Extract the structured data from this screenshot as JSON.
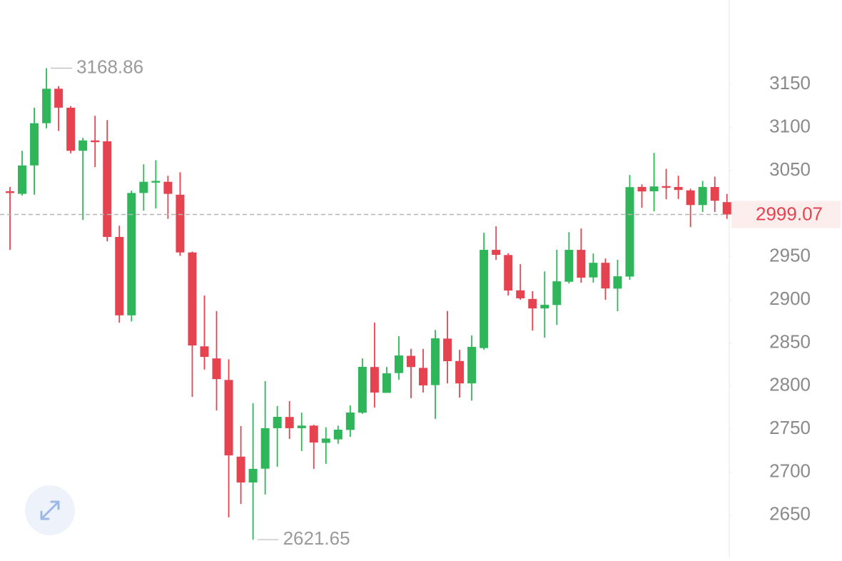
{
  "chart_data": {
    "type": "candlestick",
    "series": [
      {
        "up_color": "#2fb55a",
        "down_color": "#e5434f",
        "open": [
          3026,
          3023,
          3056,
          3105,
          3145,
          3123,
          3073,
          3085,
          3084,
          2973,
          2882,
          3024,
          3036,
          3037,
          3022,
          2955,
          2846,
          2832,
          2807,
          2718,
          2688,
          2704,
          2751,
          2764,
          2751,
          2754,
          2734,
          2738,
          2749,
          2769,
          2822,
          2792,
          2815,
          2835,
          2821,
          2801,
          2855,
          2829,
          2803,
          2844,
          2958,
          2952,
          2911,
          2901,
          2890,
          2894,
          2921,
          2958,
          2926,
          2943,
          2913,
          2927,
          3031,
          3026,
          3032,
          3031,
          3027,
          3010,
          3031,
          3013.4
        ],
        "high": [
          3031,
          3073,
          3123,
          3168.86,
          3148,
          3125,
          3088,
          3113.6,
          3108.6,
          2986,
          3026.7,
          3057.3,
          3062,
          3044,
          3048,
          2956,
          2905,
          2887,
          2831,
          2753.5,
          2780,
          2805.6,
          2776.7,
          2782.5,
          2769,
          2755,
          2752,
          2754,
          2777.5,
          2832,
          2873.5,
          2822,
          2857.8,
          2843,
          2843,
          2865,
          2887,
          2842,
          2858.6,
          2977.8,
          2985.3,
          2954,
          2941.4,
          2910,
          2933,
          2958,
          2978.6,
          2982.8,
          2953.8,
          2948,
          2946.4,
          3044.9,
          3034,
          3070.5,
          3052,
          3044,
          3029,
          3038,
          3043,
          3023
        ],
        "low": [
          2958,
          3021,
          3022,
          3099,
          3096,
          3070,
          2992.7,
          3054,
          2968,
          2873.5,
          2875,
          3003.5,
          3006,
          2994,
          2951,
          2787.4,
          2819,
          2771.7,
          2647.5,
          2663,
          2621.65,
          2674,
          2706.3,
          2738.6,
          2724.5,
          2703.8,
          2709.6,
          2733,
          2741,
          2767.6,
          2775,
          2792,
          2807.3,
          2785.8,
          2792.4,
          2761.8,
          2803,
          2786.6,
          2783,
          2842,
          2946.4,
          2905,
          2900,
          2864.4,
          2856,
          2871,
          2919,
          2919.9,
          2920,
          2900,
          2886.8,
          2923.2,
          3006.8,
          3002.7,
          3016.7,
          3017,
          2984.4,
          3002,
          3002,
          2994
        ],
        "close": [
          3024,
          3056,
          3105,
          3145,
          3123,
          3073,
          3085,
          3083,
          2973,
          2882,
          3024,
          3037,
          3038,
          3023,
          2955,
          2847,
          2833.8,
          2808,
          2719.5,
          2688,
          2703.8,
          2751,
          2764.2,
          2751,
          2754,
          2734.4,
          2739,
          2749.3,
          2769.2,
          2822.2,
          2792.4,
          2814.7,
          2835.4,
          2822,
          2800.7,
          2855.3,
          2828.8,
          2803,
          2845.4,
          2958,
          2952.2,
          2910.8,
          2901.7,
          2890,
          2894.2,
          2921.5,
          2958,
          2925.7,
          2943,
          2913.2,
          2927.3,
          3030.8,
          3025.8,
          3031.6,
          3030,
          3027.5,
          3010,
          3031,
          3015,
          2999.07
        ]
      }
    ],
    "ylim": [
      2601,
      3248
    ],
    "yticks": [
      2650,
      2700,
      2750,
      2800,
      2850,
      2900,
      2950,
      3000,
      3050,
      3100,
      3150
    ]
  }
}
